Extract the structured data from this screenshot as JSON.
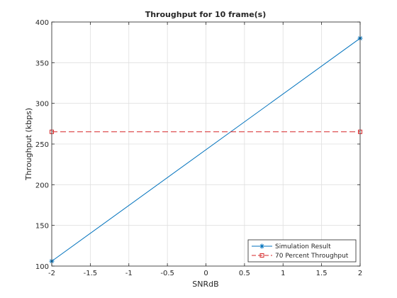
{
  "chart_data": {
    "type": "line",
    "title": "Throughput for 10 frame(s)",
    "xlabel": "SNRdB",
    "ylabel": "Throughput (kbps)",
    "xlim": [
      -2,
      2
    ],
    "ylim": [
      100,
      400
    ],
    "xticks": [
      -2,
      -1.5,
      -1,
      -0.5,
      0,
      0.5,
      1,
      1.5,
      2
    ],
    "xtick_labels": [
      "-2",
      "-1.5",
      "-1",
      "-0.5",
      "0",
      "0.5",
      "1",
      "1.5",
      "2"
    ],
    "yticks": [
      100,
      150,
      200,
      250,
      300,
      350,
      400
    ],
    "ytick_labels": [
      "100",
      "150",
      "200",
      "250",
      "300",
      "350",
      "400"
    ],
    "grid": true,
    "legend_position": "bottom-right",
    "series": [
      {
        "name": "Simulation Result",
        "x": [
          -2,
          2
        ],
        "y": [
          106,
          380
        ],
        "color": "#0072bd",
        "line_style": "solid",
        "marker": "asterisk"
      },
      {
        "name": "70 Percent Throughput",
        "x": [
          -2,
          2
        ],
        "y": [
          265,
          265
        ],
        "color": "#d62728",
        "line_style": "dashed",
        "marker": "square"
      }
    ]
  }
}
